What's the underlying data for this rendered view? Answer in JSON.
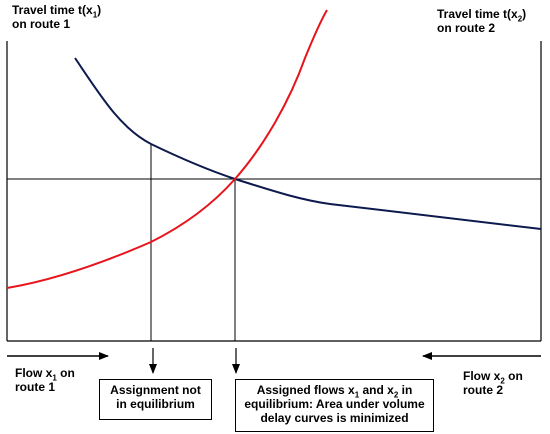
{
  "left_axis": {
    "title_prefix": "Travel time t(x",
    "title_sub": "1",
    "title_suffix": ")",
    "title_line2": "on route 1"
  },
  "right_axis": {
    "title_prefix": "Travel time t(x",
    "title_sub": "2",
    "title_suffix": ")",
    "title_line2": "on route 2"
  },
  "flow_left": {
    "prefix": "Flow x",
    "sub": "1",
    "suffix": " on",
    "line2": "route 1"
  },
  "flow_right": {
    "prefix": "Flow x",
    "sub": "2",
    "suffix": " on",
    "line2": "route 2"
  },
  "box_not_equilibrium": {
    "line1": "Assignment not",
    "line2": "in equilibrium"
  },
  "box_equilibrium": {
    "line1_a": "Assigned flows x",
    "line1_sub1": "1",
    "line1_b": " and x",
    "line1_sub2": "2",
    "line1_c": " in",
    "line2": "equilibrium: Area under volume",
    "line3": "delay curves is minimized"
  },
  "colors": {
    "route1_curve": "#e8141c",
    "route2_curve": "#0d1a4d",
    "axes": "#000000"
  }
}
